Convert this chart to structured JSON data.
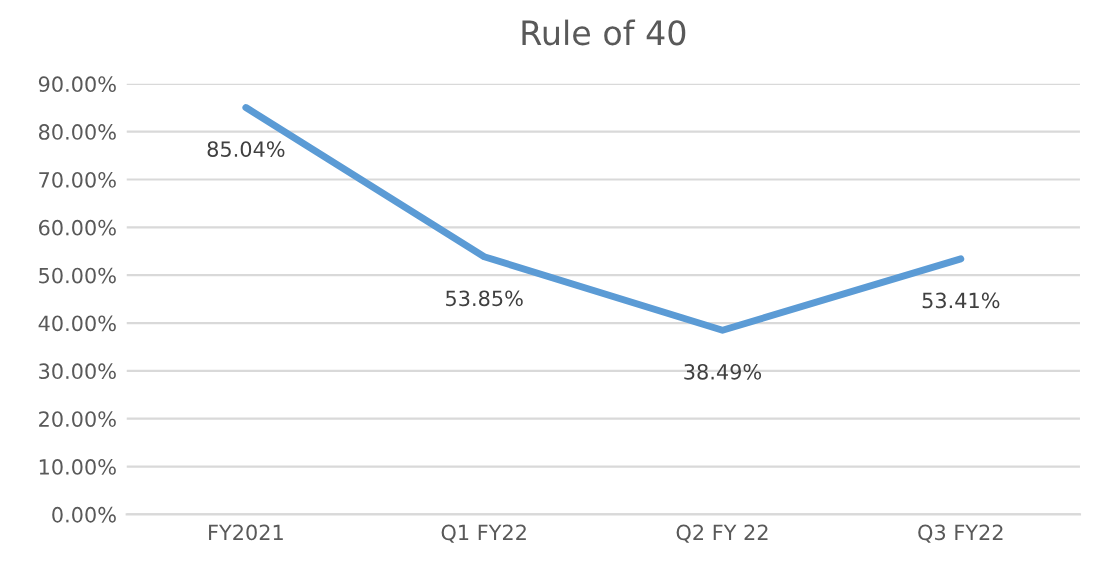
{
  "chart_data": {
    "type": "line",
    "title": "Rule of 40",
    "categories": [
      "FY2021",
      "Q1 FY22",
      "Q2 FY 22",
      "Q3 FY22"
    ],
    "series": [
      {
        "color": "#5b9bd5",
        "values": [
          85.04,
          53.85,
          38.49,
          53.41
        ],
        "value_labels": [
          "85.04%",
          "53.85%",
          "38.49%",
          "53.41%"
        ]
      }
    ],
    "ylim": [
      0,
      90
    ],
    "yticks": [
      {
        "value": 0,
        "label": "0.00%"
      },
      {
        "value": 10,
        "label": "10.00%"
      },
      {
        "value": 20,
        "label": "20.00%"
      },
      {
        "value": 30,
        "label": "30.00%"
      },
      {
        "value": 40,
        "label": "40.00%"
      },
      {
        "value": 50,
        "label": "50.00%"
      },
      {
        "value": 60,
        "label": "60.00%"
      },
      {
        "value": 70,
        "label": "70.00%"
      },
      {
        "value": 80,
        "label": "80.00%"
      },
      {
        "value": 90,
        "label": "90.00%"
      }
    ],
    "grid": "y",
    "marker": "none",
    "line_style": "solid"
  }
}
